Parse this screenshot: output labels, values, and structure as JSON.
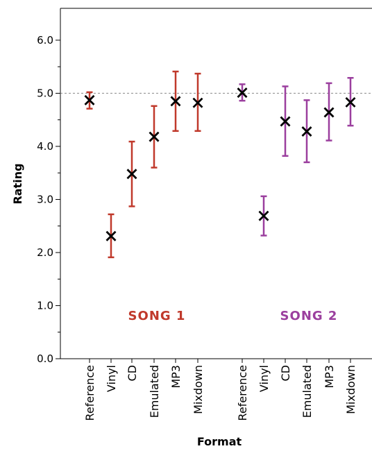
{
  "chart_data": {
    "type": "scatter",
    "title": "",
    "xlabel": "Format",
    "ylabel": "Rating",
    "ylim": [
      0,
      6.6
    ],
    "yticks": [
      0.0,
      1.0,
      2.0,
      3.0,
      4.0,
      5.0,
      6.0
    ],
    "ytick_labels": [
      "0.0",
      "1.0",
      "2.0",
      "3.0",
      "4.0",
      "5.0",
      "6.0"
    ],
    "reference_line": 5.0,
    "grid": false,
    "annotations": [
      {
        "text": "SONG 1",
        "color": "#c0392b"
      },
      {
        "text": "SONG 2",
        "color": "#9b3f9e"
      }
    ],
    "groups": [
      {
        "color": "#c0392b",
        "points": [
          {
            "label": "Reference",
            "mean": 4.87,
            "low": 4.71,
            "high": 5.02
          },
          {
            "label": "Vinyl",
            "mean": 2.31,
            "low": 1.91,
            "high": 2.72
          },
          {
            "label": "CD",
            "mean": 3.48,
            "low": 2.87,
            "high": 4.09
          },
          {
            "label": "Emulated",
            "mean": 4.18,
            "low": 3.6,
            "high": 4.76
          },
          {
            "label": "MP3",
            "mean": 4.85,
            "low": 4.29,
            "high": 5.41
          },
          {
            "label": "Mixdown",
            "mean": 4.82,
            "low": 4.29,
            "high": 5.37
          }
        ]
      },
      {
        "color": "#9b3f9e",
        "points": [
          {
            "label": "Reference",
            "mean": 5.01,
            "low": 4.86,
            "high": 5.17
          },
          {
            "label": "Vinyl",
            "mean": 2.69,
            "low": 2.32,
            "high": 3.06
          },
          {
            "label": "CD",
            "mean": 4.47,
            "low": 3.82,
            "high": 5.13
          },
          {
            "label": "Emulated",
            "mean": 4.28,
            "low": 3.7,
            "high": 4.87
          },
          {
            "label": "MP3",
            "mean": 4.64,
            "low": 4.11,
            "high": 5.19
          },
          {
            "label": "Mixdown",
            "mean": 4.83,
            "low": 4.39,
            "high": 5.29
          }
        ]
      }
    ]
  }
}
